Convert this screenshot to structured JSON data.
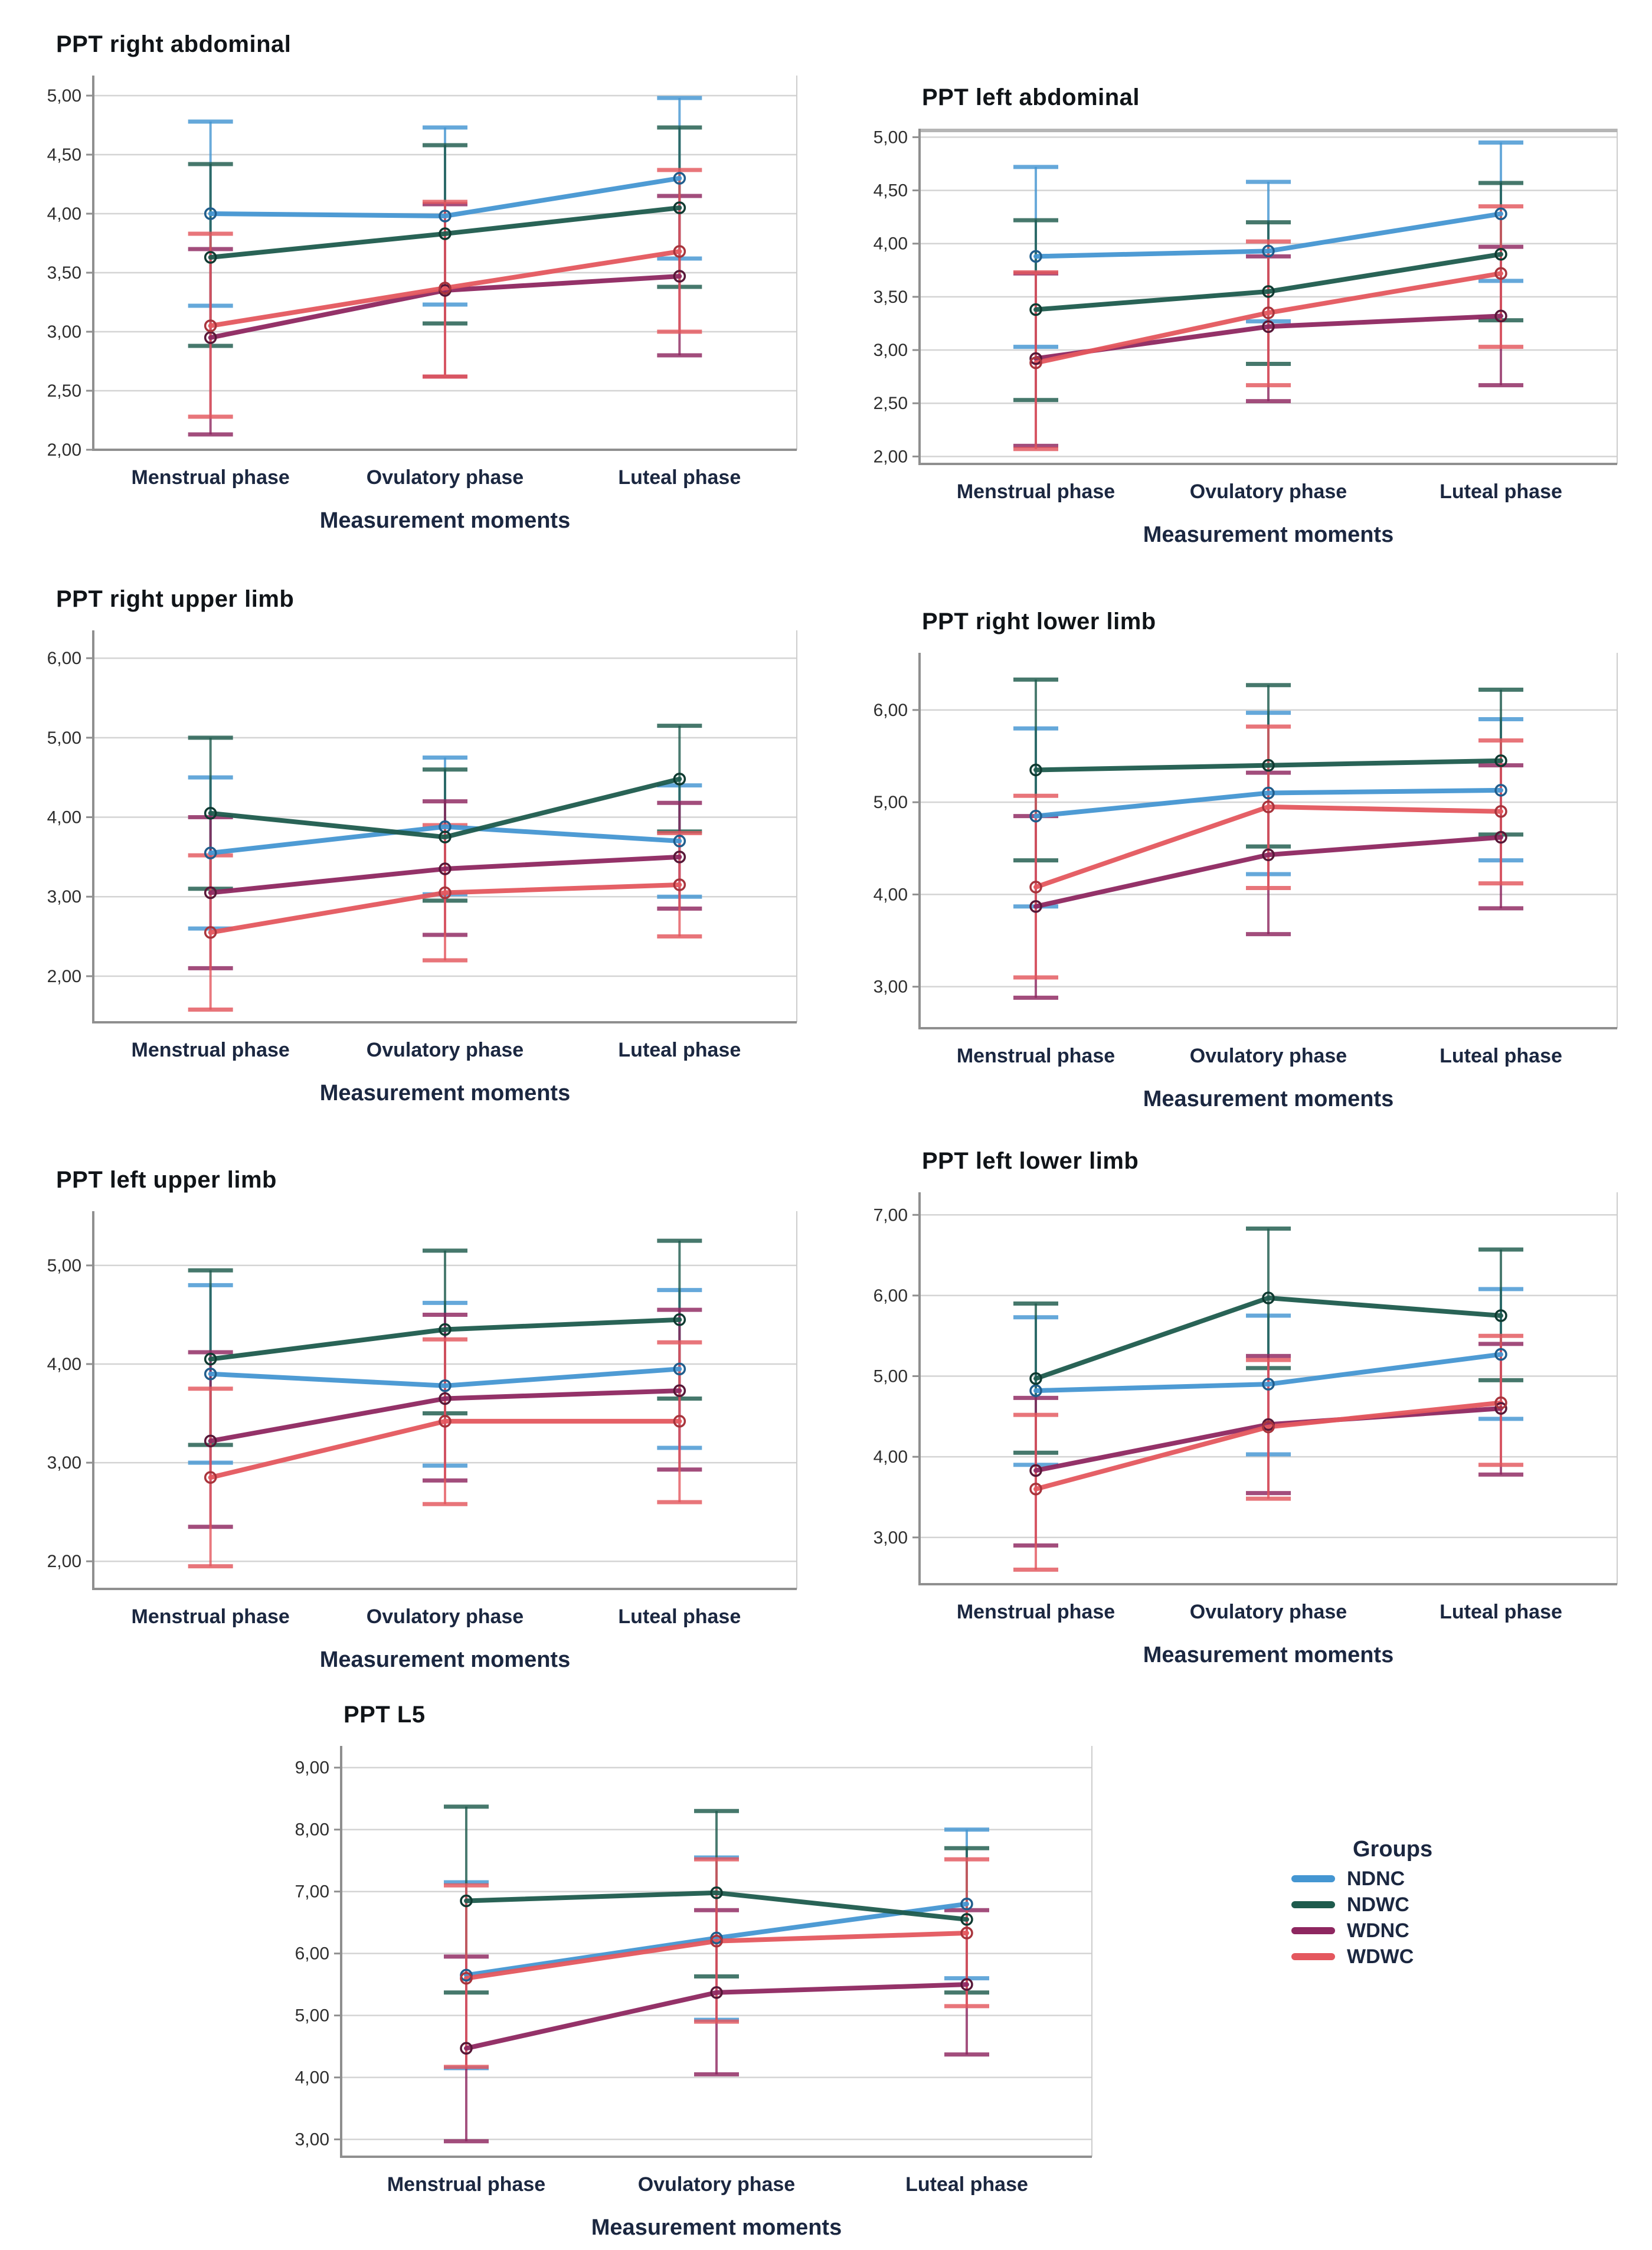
{
  "legend": {
    "title": "Groups",
    "items": [
      {
        "label": "NDNC",
        "color": "#4496d2",
        "marker_color": "#205d8c"
      },
      {
        "label": "NDWC",
        "color": "#1e5b4d",
        "marker_color": "#0f3a31"
      },
      {
        "label": "WDNC",
        "color": "#8e2760",
        "marker_color": "#571838"
      },
      {
        "label": "WDWC",
        "color": "#e4575e",
        "marker_color": "#a8343c"
      }
    ]
  },
  "chart_data": [
    {
      "type": "line",
      "title": "PPT right abdominal",
      "xlabel": "Measurement moments",
      "categories": [
        "Menstrual phase",
        "Ovulatory phase",
        "Luteal phase"
      ],
      "ylim": [
        2.0,
        5.17
      ],
      "yticks": [
        2.0,
        2.5,
        3.0,
        3.5,
        4.0,
        4.5,
        5.0
      ],
      "ytick_labels": [
        "2,00",
        "2,50",
        "3,00",
        "3,50",
        "4,00",
        "4,50",
        "5,00"
      ],
      "grid": true,
      "legend_position": "none",
      "series": [
        {
          "name": "NDNC",
          "means": [
            4.0,
            3.98,
            4.3
          ],
          "err_lo": [
            3.22,
            3.23,
            3.62
          ],
          "err_hi": [
            4.78,
            4.73,
            4.98
          ]
        },
        {
          "name": "NDWC",
          "means": [
            3.63,
            3.83,
            4.05
          ],
          "err_lo": [
            2.88,
            3.07,
            3.38
          ],
          "err_hi": [
            4.42,
            4.58,
            4.73
          ]
        },
        {
          "name": "WDNC",
          "means": [
            2.95,
            3.35,
            3.47
          ],
          "err_lo": [
            2.13,
            2.62,
            2.8
          ],
          "err_hi": [
            3.7,
            4.08,
            4.15
          ]
        },
        {
          "name": "WDWC",
          "means": [
            3.05,
            3.37,
            3.68
          ],
          "err_lo": [
            2.28,
            2.62,
            3.0
          ],
          "err_hi": [
            3.83,
            4.1,
            4.37
          ]
        }
      ]
    },
    {
      "type": "line",
      "title": "PPT left abdominal",
      "xlabel": "Measurement moments",
      "categories": [
        "Menstrual phase",
        "Ovulatory phase",
        "Luteal phase"
      ],
      "ylim": [
        1.93,
        5.08
      ],
      "yticks": [
        2.0,
        2.5,
        3.0,
        3.5,
        4.0,
        4.5,
        5.0
      ],
      "ytick_labels": [
        "2,00",
        "2,50",
        "3,00",
        "3,50",
        "4,00",
        "4,50",
        "5,00"
      ],
      "grid": true,
      "frame_top": true,
      "legend_position": "none",
      "series": [
        {
          "name": "NDNC",
          "means": [
            3.88,
            3.93,
            4.28
          ],
          "err_lo": [
            3.03,
            3.27,
            3.65
          ],
          "err_hi": [
            4.72,
            4.58,
            4.95
          ]
        },
        {
          "name": "NDWC",
          "means": [
            3.38,
            3.55,
            3.9
          ],
          "err_lo": [
            2.53,
            2.87,
            3.28
          ],
          "err_hi": [
            4.22,
            4.2,
            4.57
          ]
        },
        {
          "name": "WDNC",
          "means": [
            2.92,
            3.22,
            3.32
          ],
          "err_lo": [
            2.1,
            2.52,
            2.67
          ],
          "err_hi": [
            3.72,
            3.88,
            3.97
          ]
        },
        {
          "name": "WDWC",
          "means": [
            2.88,
            3.35,
            3.72
          ],
          "err_lo": [
            2.07,
            2.67,
            3.03
          ],
          "err_hi": [
            3.73,
            4.02,
            4.35
          ]
        }
      ]
    },
    {
      "type": "line",
      "title": "PPT right upper limb",
      "xlabel": "Measurement moments",
      "categories": [
        "Menstrual phase",
        "Ovulatory phase",
        "Luteal phase"
      ],
      "ylim": [
        1.42,
        6.35
      ],
      "yticks": [
        2.0,
        3.0,
        4.0,
        5.0,
        6.0
      ],
      "ytick_labels": [
        "2,00",
        "3,00",
        "4,00",
        "5,00",
        "6,00"
      ],
      "grid": true,
      "legend_position": "none",
      "series": [
        {
          "name": "NDNC",
          "means": [
            3.55,
            3.88,
            3.7
          ],
          "err_lo": [
            2.6,
            3.03,
            3.0
          ],
          "err_hi": [
            4.5,
            4.75,
            4.4
          ]
        },
        {
          "name": "NDWC",
          "means": [
            4.05,
            3.75,
            4.48
          ],
          "err_lo": [
            3.1,
            2.95,
            3.82
          ],
          "err_hi": [
            5.0,
            4.6,
            5.15
          ]
        },
        {
          "name": "WDNC",
          "means": [
            3.05,
            3.35,
            3.5
          ],
          "err_lo": [
            2.1,
            2.52,
            2.85
          ],
          "err_hi": [
            4.0,
            4.2,
            4.18
          ]
        },
        {
          "name": "WDWC",
          "means": [
            2.55,
            3.05,
            3.15
          ],
          "err_lo": [
            1.58,
            2.2,
            2.5
          ],
          "err_hi": [
            3.52,
            3.9,
            3.8
          ]
        }
      ]
    },
    {
      "type": "line",
      "title": "PPT right lower limb",
      "xlabel": "Measurement moments",
      "categories": [
        "Menstrual phase",
        "Ovulatory phase",
        "Luteal phase"
      ],
      "ylim": [
        2.55,
        6.62
      ],
      "yticks": [
        3.0,
        4.0,
        5.0,
        6.0
      ],
      "ytick_labels": [
        "3,00",
        "4,00",
        "5,00",
        "6,00"
      ],
      "grid": true,
      "legend_position": "none",
      "series": [
        {
          "name": "NDNC",
          "means": [
            4.85,
            5.1,
            5.13
          ],
          "err_lo": [
            3.87,
            4.22,
            4.37
          ],
          "err_hi": [
            5.8,
            5.97,
            5.9
          ]
        },
        {
          "name": "NDWC",
          "means": [
            5.35,
            5.4,
            5.45
          ],
          "err_lo": [
            4.37,
            4.52,
            4.65
          ],
          "err_hi": [
            6.33,
            6.27,
            6.22
          ]
        },
        {
          "name": "WDNC",
          "means": [
            3.87,
            4.43,
            4.62
          ],
          "err_lo": [
            2.88,
            3.57,
            3.85
          ],
          "err_hi": [
            4.85,
            5.32,
            5.4
          ]
        },
        {
          "name": "WDWC",
          "means": [
            4.08,
            4.95,
            4.9
          ],
          "err_lo": [
            3.1,
            4.07,
            4.12
          ],
          "err_hi": [
            5.07,
            5.82,
            5.67
          ]
        }
      ]
    },
    {
      "type": "line",
      "title": "PPT left upper limb",
      "xlabel": "Measurement moments",
      "categories": [
        "Menstrual phase",
        "Ovulatory phase",
        "Luteal phase"
      ],
      "ylim": [
        1.72,
        5.55
      ],
      "yticks": [
        2.0,
        3.0,
        4.0,
        5.0
      ],
      "ytick_labels": [
        "2,00",
        "3,00",
        "4,00",
        "5,00"
      ],
      "grid": true,
      "legend_position": "none",
      "series": [
        {
          "name": "NDNC",
          "means": [
            3.9,
            3.78,
            3.95
          ],
          "err_lo": [
            3.0,
            2.97,
            3.15
          ],
          "err_hi": [
            4.8,
            4.62,
            4.75
          ]
        },
        {
          "name": "NDWC",
          "means": [
            4.05,
            4.35,
            4.45
          ],
          "err_lo": [
            3.18,
            3.5,
            3.65
          ],
          "err_hi": [
            4.95,
            5.15,
            5.25
          ]
        },
        {
          "name": "WDNC",
          "means": [
            3.22,
            3.65,
            3.73
          ],
          "err_lo": [
            2.35,
            2.82,
            2.93
          ],
          "err_hi": [
            4.12,
            4.5,
            4.55
          ]
        },
        {
          "name": "WDWC",
          "means": [
            2.85,
            3.42,
            3.42
          ],
          "err_lo": [
            1.95,
            2.58,
            2.6
          ],
          "err_hi": [
            3.75,
            4.25,
            4.22
          ]
        }
      ]
    },
    {
      "type": "line",
      "title": "PPT left lower limb",
      "xlabel": "Measurement moments",
      "categories": [
        "Menstrual phase",
        "Ovulatory phase",
        "Luteal phase"
      ],
      "ylim": [
        2.42,
        7.28
      ],
      "yticks": [
        3.0,
        4.0,
        5.0,
        6.0,
        7.0
      ],
      "ytick_labels": [
        "3,00",
        "4,00",
        "5,00",
        "6,00",
        "7,00"
      ],
      "grid": true,
      "legend_position": "none",
      "series": [
        {
          "name": "NDNC",
          "means": [
            4.82,
            4.9,
            5.27
          ],
          "err_lo": [
            3.9,
            4.03,
            4.47
          ],
          "err_hi": [
            5.73,
            5.75,
            6.08
          ]
        },
        {
          "name": "NDWC",
          "means": [
            4.97,
            5.97,
            5.75
          ],
          "err_lo": [
            4.05,
            5.1,
            4.95
          ],
          "err_hi": [
            5.9,
            6.83,
            6.57
          ]
        },
        {
          "name": "WDNC",
          "means": [
            3.83,
            4.4,
            4.6
          ],
          "err_lo": [
            2.9,
            3.55,
            3.78
          ],
          "err_hi": [
            4.73,
            5.25,
            5.4
          ]
        },
        {
          "name": "WDWC",
          "means": [
            3.6,
            4.37,
            4.67
          ],
          "err_lo": [
            2.6,
            3.48,
            3.9
          ],
          "err_hi": [
            4.52,
            5.2,
            5.5
          ]
        }
      ]
    },
    {
      "type": "line",
      "title": "PPT L5",
      "xlabel": "Measurement moments",
      "categories": [
        "Menstrual phase",
        "Ovulatory phase",
        "Luteal phase"
      ],
      "ylim": [
        2.72,
        9.35
      ],
      "yticks": [
        3.0,
        4.0,
        5.0,
        6.0,
        7.0,
        8.0,
        9.0
      ],
      "ytick_labels": [
        "3,00",
        "4,00",
        "5,00",
        "6,00",
        "7,00",
        "8,00",
        "9,00"
      ],
      "grid": true,
      "legend_position": "right-outside",
      "series": [
        {
          "name": "NDNC",
          "means": [
            5.65,
            6.25,
            6.8
          ],
          "err_lo": [
            4.15,
            4.93,
            5.6
          ],
          "err_hi": [
            7.15,
            7.55,
            8.0
          ]
        },
        {
          "name": "NDWC",
          "means": [
            6.85,
            6.98,
            6.55
          ],
          "err_lo": [
            5.37,
            5.63,
            5.37
          ],
          "err_hi": [
            8.37,
            8.3,
            7.7
          ]
        },
        {
          "name": "WDNC",
          "means": [
            4.47,
            5.37,
            5.5
          ],
          "err_lo": [
            2.97,
            4.05,
            4.37
          ],
          "err_hi": [
            5.95,
            6.7,
            6.7
          ]
        },
        {
          "name": "WDWC",
          "means": [
            5.6,
            6.2,
            6.33
          ],
          "err_lo": [
            4.17,
            4.9,
            5.15
          ],
          "err_hi": [
            7.1,
            7.52,
            7.52
          ]
        }
      ]
    }
  ]
}
